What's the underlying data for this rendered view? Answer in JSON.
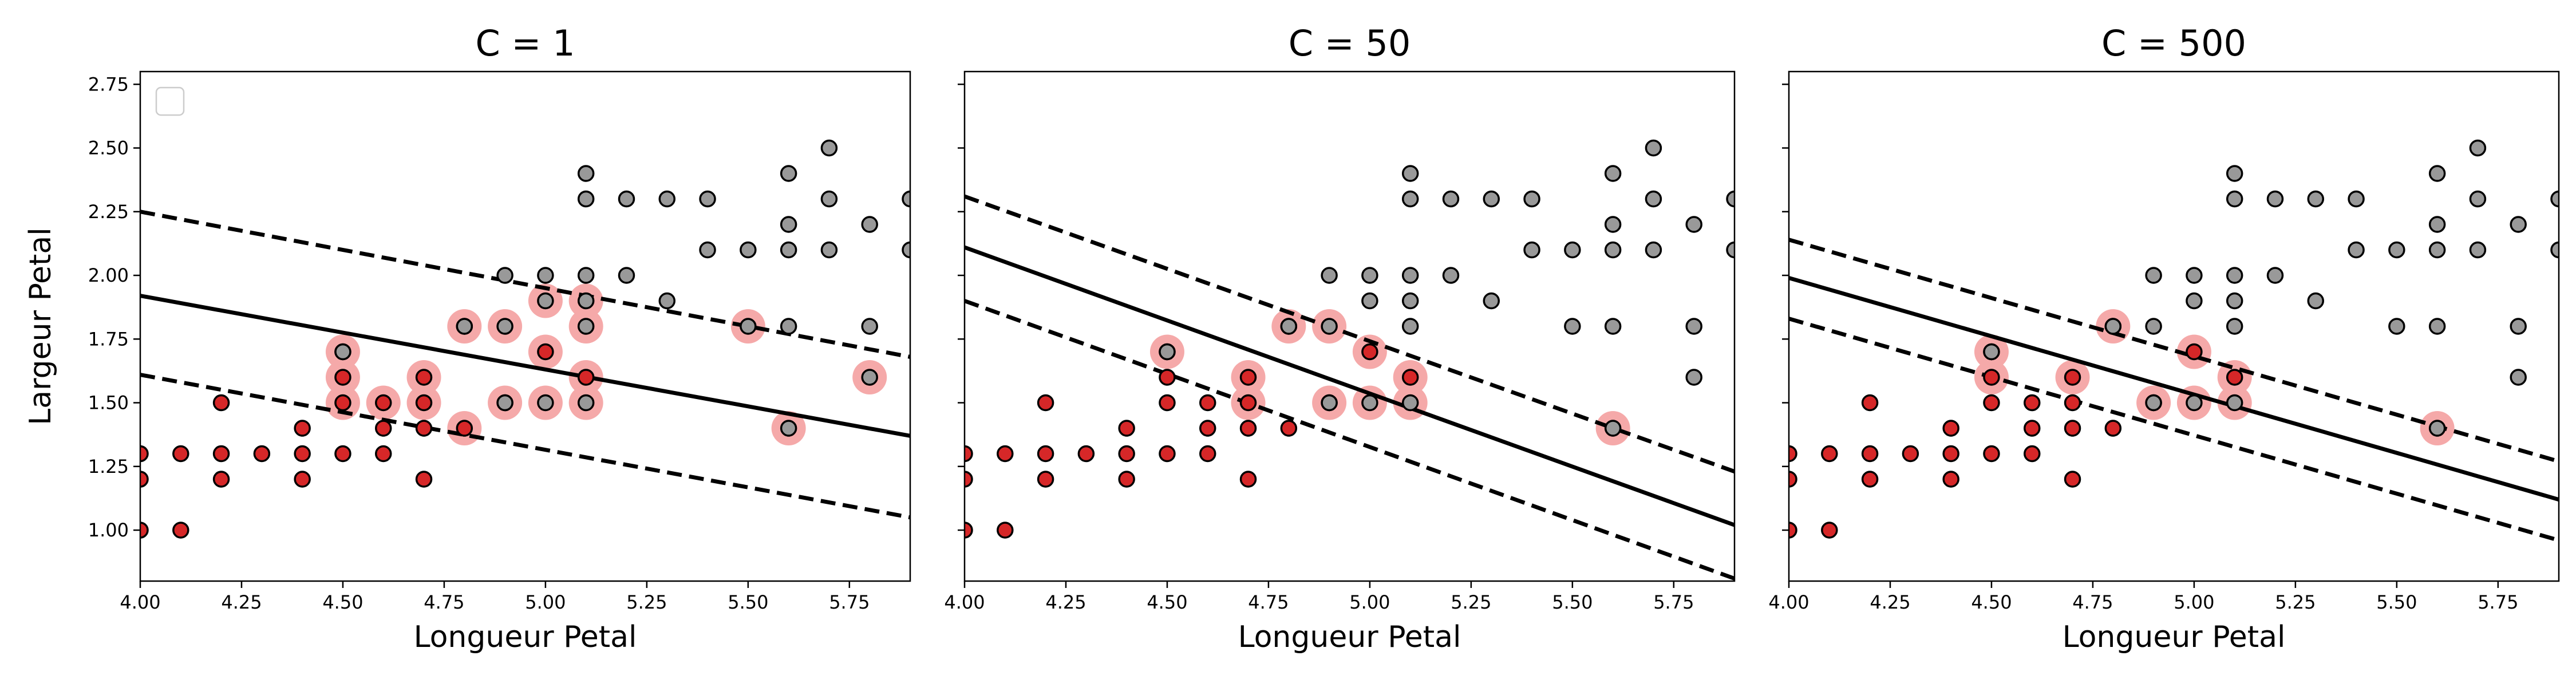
{
  "chart_data": [
    {
      "type": "scatter",
      "title": "C = 1",
      "xlabel": "Longueur Petal",
      "ylabel": "Largeur Petal",
      "xlim": [
        4.0,
        5.9
      ],
      "ylim": [
        0.8,
        2.8
      ],
      "show_legend_box": true,
      "boundary": {
        "x": [
          4.0,
          5.9
        ],
        "y": [
          1.92,
          1.37
        ]
      },
      "margin_upper": {
        "x": [
          4.0,
          5.9
        ],
        "y": [
          2.25,
          1.68
        ]
      },
      "margin_lower": {
        "x": [
          4.0,
          5.9
        ],
        "y": [
          1.61,
          1.05
        ]
      },
      "support_vectors": [
        [
          4.5,
          1.7
        ],
        [
          4.5,
          1.6
        ],
        [
          4.5,
          1.5
        ],
        [
          4.6,
          1.5
        ],
        [
          4.7,
          1.6
        ],
        [
          4.7,
          1.5
        ],
        [
          4.8,
          1.8
        ],
        [
          4.8,
          1.4
        ],
        [
          4.9,
          1.8
        ],
        [
          4.9,
          1.5
        ],
        [
          5.0,
          1.9
        ],
        [
          5.0,
          1.7
        ],
        [
          5.0,
          1.5
        ],
        [
          5.1,
          1.9
        ],
        [
          5.1,
          1.8
        ],
        [
          5.1,
          1.6
        ],
        [
          5.1,
          1.5
        ],
        [
          5.5,
          1.8
        ],
        [
          5.6,
          1.4
        ],
        [
          5.8,
          1.6
        ]
      ]
    },
    {
      "type": "scatter",
      "title": "C = 50",
      "xlabel": "Longueur Petal",
      "ylabel": "",
      "xlim": [
        4.0,
        5.9
      ],
      "ylim": [
        0.8,
        2.8
      ],
      "show_legend_box": false,
      "boundary": {
        "x": [
          4.0,
          5.9
        ],
        "y": [
          2.11,
          1.02
        ]
      },
      "margin_upper": {
        "x": [
          4.0,
          5.9
        ],
        "y": [
          2.31,
          1.23
        ]
      },
      "margin_lower": {
        "x": [
          4.0,
          5.9
        ],
        "y": [
          1.9,
          0.81
        ]
      },
      "support_vectors": [
        [
          4.5,
          1.7
        ],
        [
          4.7,
          1.6
        ],
        [
          4.7,
          1.5
        ],
        [
          4.8,
          1.8
        ],
        [
          4.9,
          1.8
        ],
        [
          4.9,
          1.5
        ],
        [
          5.0,
          1.7
        ],
        [
          5.0,
          1.5
        ],
        [
          5.1,
          1.6
        ],
        [
          5.1,
          1.5
        ],
        [
          5.6,
          1.4
        ]
      ]
    },
    {
      "type": "scatter",
      "title": "C = 500",
      "xlabel": "Longueur Petal",
      "ylabel": "",
      "xlim": [
        4.0,
        5.9
      ],
      "ylim": [
        0.8,
        2.8
      ],
      "show_legend_box": false,
      "boundary": {
        "x": [
          4.0,
          5.9
        ],
        "y": [
          1.99,
          1.12
        ]
      },
      "margin_upper": {
        "x": [
          4.0,
          5.9
        ],
        "y": [
          2.14,
          1.27
        ]
      },
      "margin_lower": {
        "x": [
          4.0,
          5.9
        ],
        "y": [
          1.83,
          0.96
        ]
      },
      "support_vectors": [
        [
          4.5,
          1.7
        ],
        [
          4.5,
          1.6
        ],
        [
          4.7,
          1.6
        ],
        [
          4.8,
          1.8
        ],
        [
          4.9,
          1.5
        ],
        [
          5.0,
          1.7
        ],
        [
          5.0,
          1.5
        ],
        [
          5.1,
          1.6
        ],
        [
          5.1,
          1.5
        ],
        [
          5.6,
          1.4
        ]
      ]
    }
  ],
  "shared": {
    "x_ticks": [
      "4.00",
      "4.25",
      "4.50",
      "4.75",
      "5.00",
      "5.25",
      "5.50",
      "5.75"
    ],
    "x_tick_values": [
      4.0,
      4.25,
      4.5,
      4.75,
      5.0,
      5.25,
      5.5,
      5.75
    ],
    "y_ticks": [
      "1.00",
      "1.25",
      "1.50",
      "1.75",
      "2.00",
      "2.25",
      "2.50",
      "2.75"
    ],
    "y_tick_values": [
      1.0,
      1.25,
      1.5,
      1.75,
      2.0,
      2.25,
      2.5,
      2.75
    ],
    "class_red_points": [
      [
        4.0,
        1.3
      ],
      [
        4.0,
        1.2
      ],
      [
        4.0,
        1.0
      ],
      [
        4.1,
        1.3
      ],
      [
        4.1,
        1.0
      ],
      [
        4.2,
        1.5
      ],
      [
        4.2,
        1.3
      ],
      [
        4.2,
        1.2
      ],
      [
        4.3,
        1.3
      ],
      [
        4.4,
        1.4
      ],
      [
        4.4,
        1.3
      ],
      [
        4.4,
        1.2
      ],
      [
        4.5,
        1.7
      ],
      [
        4.5,
        1.6
      ],
      [
        4.5,
        1.5
      ],
      [
        4.5,
        1.3
      ],
      [
        4.6,
        1.5
      ],
      [
        4.6,
        1.4
      ],
      [
        4.6,
        1.3
      ],
      [
        4.7,
        1.6
      ],
      [
        4.7,
        1.5
      ],
      [
        4.7,
        1.4
      ],
      [
        4.7,
        1.2
      ],
      [
        4.8,
        1.8
      ],
      [
        4.8,
        1.4
      ],
      [
        4.9,
        1.5
      ],
      [
        5.0,
        1.7
      ],
      [
        5.1,
        1.6
      ]
    ],
    "class_gray_points": [
      [
        4.5,
        1.7
      ],
      [
        4.8,
        1.8
      ],
      [
        4.9,
        2.0
      ],
      [
        4.9,
        1.8
      ],
      [
        4.9,
        1.5
      ],
      [
        5.0,
        2.0
      ],
      [
        5.0,
        1.9
      ],
      [
        5.0,
        1.5
      ],
      [
        5.1,
        2.4
      ],
      [
        5.1,
        2.3
      ],
      [
        5.1,
        2.0
      ],
      [
        5.1,
        1.9
      ],
      [
        5.1,
        1.8
      ],
      [
        5.1,
        1.5
      ],
      [
        5.2,
        2.3
      ],
      [
        5.2,
        2.0
      ],
      [
        5.3,
        2.3
      ],
      [
        5.3,
        1.9
      ],
      [
        5.4,
        2.3
      ],
      [
        5.4,
        2.1
      ],
      [
        5.5,
        2.1
      ],
      [
        5.5,
        1.8
      ],
      [
        5.6,
        2.4
      ],
      [
        5.6,
        2.2
      ],
      [
        5.6,
        2.1
      ],
      [
        5.6,
        1.8
      ],
      [
        5.6,
        1.4
      ],
      [
        5.7,
        2.5
      ],
      [
        5.7,
        2.3
      ],
      [
        5.7,
        2.1
      ],
      [
        5.8,
        2.2
      ],
      [
        5.8,
        1.8
      ],
      [
        5.8,
        1.6
      ],
      [
        5.9,
        2.3
      ],
      [
        5.9,
        2.1
      ]
    ],
    "colors": {
      "red_fill": "#d62728",
      "gray_fill": "#999999",
      "marker_edge": "#000000",
      "support_vector_halo": "#f5a9a9",
      "line": "#000000"
    }
  }
}
